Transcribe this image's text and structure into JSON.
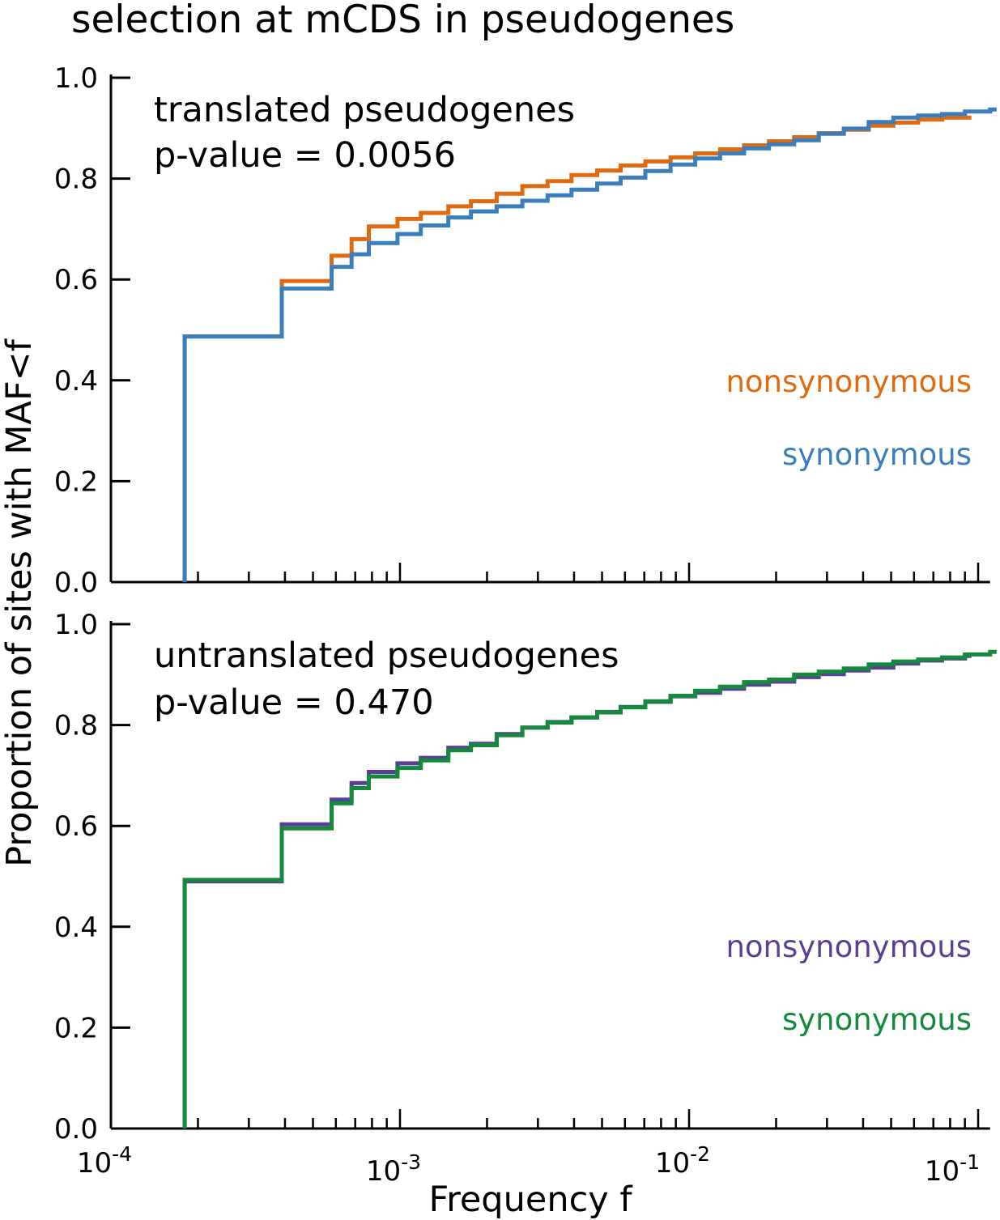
{
  "figure": {
    "title": "selection at mCDS in pseudogenes",
    "xlabel": "Frequency f",
    "ylabel": "Proportion of sites with MAF<f"
  },
  "x_ticks": [
    {
      "base": "10",
      "exp": "-4",
      "value": 0.0001
    },
    {
      "base": "10",
      "exp": "-3",
      "value": 0.001
    },
    {
      "base": "10",
      "exp": "-2",
      "value": 0.01
    },
    {
      "base": "10",
      "exp": "-1",
      "value": 0.1
    }
  ],
  "y_ticks": [
    "0.0",
    "0.2",
    "0.4",
    "0.6",
    "0.8",
    "1.0"
  ],
  "chart_data": [
    {
      "type": "line",
      "subtype": "step-ecdf",
      "title": "translated pseudogenes",
      "annotation": "p-value = 0.0056",
      "xscale": "log",
      "xlim": [
        0.0001,
        0.11
      ],
      "ylim": [
        0,
        1
      ],
      "legend_position": "right",
      "series": [
        {
          "name": "nonsynonymous",
          "color": "#e06a10",
          "x": [
            0.00018,
            0.00039,
            0.00058,
            0.00068,
            0.00078,
            0.00098,
            0.00118,
            0.00147,
            0.00176,
            0.00216,
            0.00265,
            0.00324,
            0.00392,
            0.00481,
            0.0058,
            0.00706,
            0.00863,
            0.0105,
            0.0128,
            0.0155,
            0.0189,
            0.0231,
            0.0281,
            0.0343,
            0.0418,
            0.0509,
            0.062,
            0.075,
            0.09
          ],
          "values": [
            0.487,
            0.597,
            0.647,
            0.68,
            0.705,
            0.72,
            0.732,
            0.745,
            0.755,
            0.77,
            0.785,
            0.795,
            0.807,
            0.816,
            0.826,
            0.834,
            0.842,
            0.85,
            0.858,
            0.866,
            0.874,
            0.882,
            0.89,
            0.897,
            0.905,
            0.911,
            0.917,
            0.921,
            0.921
          ]
        },
        {
          "name": "synonymous",
          "color": "#3a7fbc",
          "x": [
            0.00018,
            0.00039,
            0.00058,
            0.00068,
            0.00078,
            0.00098,
            0.00118,
            0.00147,
            0.00176,
            0.00216,
            0.00265,
            0.00324,
            0.00392,
            0.00481,
            0.0058,
            0.00706,
            0.00863,
            0.0105,
            0.0128,
            0.0155,
            0.0189,
            0.0231,
            0.0281,
            0.0343,
            0.0418,
            0.0509,
            0.062,
            0.075,
            0.09,
            0.11
          ],
          "values": [
            0.487,
            0.582,
            0.625,
            0.65,
            0.672,
            0.69,
            0.707,
            0.723,
            0.735,
            0.745,
            0.756,
            0.767,
            0.778,
            0.79,
            0.802,
            0.815,
            0.828,
            0.84,
            0.85,
            0.86,
            0.868,
            0.876,
            0.889,
            0.899,
            0.912,
            0.921,
            0.925,
            0.928,
            0.933,
            0.937
          ]
        }
      ]
    },
    {
      "type": "line",
      "subtype": "step-ecdf",
      "title": "untranslated pseudogenes",
      "annotation": "p-value = 0.470",
      "xscale": "log",
      "xlim": [
        0.0001,
        0.11
      ],
      "ylim": [
        0,
        1
      ],
      "legend_position": "right",
      "series": [
        {
          "name": "nonsynonymous",
          "color": "#5b3f94",
          "x": [
            0.00018,
            0.00039,
            0.00058,
            0.00068,
            0.00078,
            0.00098,
            0.00118,
            0.00147,
            0.00176,
            0.00216,
            0.00265,
            0.00324,
            0.00392,
            0.00481,
            0.0058,
            0.00706,
            0.00863,
            0.0105,
            0.0128,
            0.0155,
            0.0189,
            0.0231,
            0.0281,
            0.0343,
            0.0418,
            0.0509,
            0.062,
            0.075,
            0.09
          ],
          "values": [
            0.49,
            0.603,
            0.652,
            0.685,
            0.707,
            0.724,
            0.735,
            0.755,
            0.763,
            0.782,
            0.795,
            0.806,
            0.815,
            0.826,
            0.836,
            0.846,
            0.857,
            0.864,
            0.872,
            0.88,
            0.886,
            0.895,
            0.901,
            0.908,
            0.914,
            0.922,
            0.928,
            0.932,
            0.937
          ]
        },
        {
          "name": "synonymous",
          "color": "#138a3c",
          "x": [
            0.00018,
            0.00039,
            0.00058,
            0.00068,
            0.00078,
            0.00098,
            0.00118,
            0.00147,
            0.00176,
            0.00216,
            0.00265,
            0.00324,
            0.00392,
            0.00481,
            0.0058,
            0.00706,
            0.00863,
            0.0105,
            0.0128,
            0.0155,
            0.0189,
            0.0231,
            0.0281,
            0.0343,
            0.0418,
            0.0509,
            0.062,
            0.075,
            0.09,
            0.11
          ],
          "values": [
            0.493,
            0.595,
            0.645,
            0.675,
            0.698,
            0.715,
            0.73,
            0.75,
            0.76,
            0.78,
            0.795,
            0.805,
            0.815,
            0.825,
            0.835,
            0.847,
            0.858,
            0.868,
            0.876,
            0.885,
            0.89,
            0.9,
            0.906,
            0.912,
            0.92,
            0.926,
            0.93,
            0.934,
            0.94,
            0.945
          ]
        }
      ]
    }
  ]
}
